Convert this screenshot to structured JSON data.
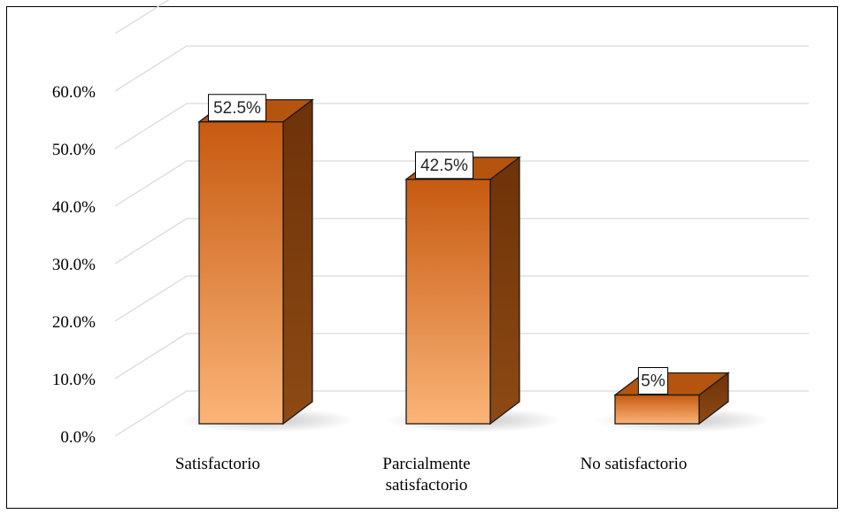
{
  "chart_data": {
    "type": "bar",
    "style": "3d-column",
    "categories": [
      "Satisfactorio",
      "Parcialmente satisfactorio",
      "No satisfactorio"
    ],
    "category_lines": [
      [
        "Satisfactorio"
      ],
      [
        "Parcialmente",
        "satisfactorio"
      ],
      [
        "No satisfactorio"
      ]
    ],
    "values": [
      52.5,
      42.5,
      5
    ],
    "data_labels": [
      "52.5%",
      "42.5%",
      "5%"
    ],
    "yticks": [
      "0.0%",
      "10.0%",
      "20.0%",
      "30.0%",
      "40.0%",
      "50.0%",
      "60.0%"
    ],
    "ylim": [
      0,
      70
    ],
    "grid": true,
    "legend": "none",
    "title": "",
    "xlabel": "",
    "ylabel": "",
    "colors": {
      "bar_front_top": "#c65a10",
      "bar_front_bottom": "#fbb478",
      "bar_side": "#7a3a0c",
      "bar_top": "#b4540f",
      "gridline": "#d9d9d9",
      "frame": "#000000"
    }
  }
}
